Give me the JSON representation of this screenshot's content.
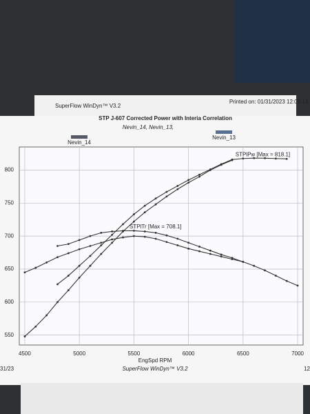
{
  "chart_data": {
    "type": "line",
    "title": "STP J-607 Corrected Power with Interia Correlation",
    "subtitle": "Nevin_14, Nevin_13,",
    "header_left": "SuperFlow WinDyn™ V3.2",
    "header_right": "Printed on: 01/31/2023 12:09:13",
    "x_label": "EngSpd RPM",
    "footer": "SuperFlow WinDyn™ V3.2",
    "footer_left": "31/23",
    "footer_right": "12",
    "annotations": [
      {
        "text": "STPlPw [Max = 818.1]",
        "x": 6430,
        "y": 823
      },
      {
        "text": "STPlTr [Max = 708.1]",
        "x": 5460,
        "y": 714
      }
    ],
    "xlim": [
      4450,
      7050
    ],
    "xticks": [
      4500,
      5000,
      5500,
      6000,
      6500,
      7000
    ],
    "ylim": [
      535,
      835
    ],
    "yticks": [
      550,
      600,
      650,
      700,
      750,
      800
    ],
    "grid": true,
    "line_color": "#333333",
    "series": [
      {
        "name": "Nevin_14",
        "color": "#555a66",
        "x": [
          4500,
          4600,
          4700,
          4800,
          4900,
          5000,
          5100,
          5200,
          5300,
          5400,
          5500,
          5600,
          5700,
          5800,
          5900,
          6000,
          6100,
          6200,
          6300,
          6400
        ],
        "values": [
          548,
          563,
          580,
          600,
          618,
          637,
          655,
          673,
          690,
          707,
          722,
          736,
          748,
          760,
          771,
          781,
          790,
          800,
          808,
          815
        ],
        "torque_x": [
          4500,
          4600,
          4700,
          4800,
          4900,
          5000,
          5100,
          5200,
          5300,
          5400,
          5500,
          5600,
          5700,
          5800,
          5900,
          6000,
          6100,
          6200,
          6300,
          6400,
          6500
        ],
        "torque_values": [
          645,
          652,
          660,
          668,
          674,
          680,
          685,
          690,
          695,
          698,
          700,
          699,
          696,
          691,
          686,
          681,
          677,
          673,
          669,
          665,
          661
        ]
      },
      {
        "name": "Nevin_13",
        "color": "#5a7090",
        "x": [
          4800,
          4900,
          5000,
          5100,
          5200,
          5300,
          5400,
          5500,
          5600,
          5700,
          5800,
          5900,
          6000,
          6100,
          6200,
          6300,
          6400,
          6500,
          6600,
          6700,
          6800,
          6900
        ],
        "values": [
          627,
          640,
          655,
          670,
          686,
          702,
          718,
          733,
          746,
          757,
          767,
          776,
          785,
          793,
          801,
          809,
          816,
          817.5,
          818.1,
          818,
          817.5,
          817
        ],
        "torque_x": [
          4800,
          4900,
          5000,
          5100,
          5200,
          5300,
          5400,
          5500,
          5600,
          5700,
          5800,
          5900,
          6000,
          6100,
          6200,
          6300,
          6400,
          6500,
          6600,
          6700,
          6800,
          6900,
          7000
        ],
        "torque_values": [
          685,
          688,
          694,
          700,
          705,
          707,
          708,
          708.1,
          707,
          705,
          701,
          696,
          690,
          684,
          678,
          672,
          667,
          661,
          655,
          648,
          640,
          632,
          625
        ]
      }
    ]
  }
}
